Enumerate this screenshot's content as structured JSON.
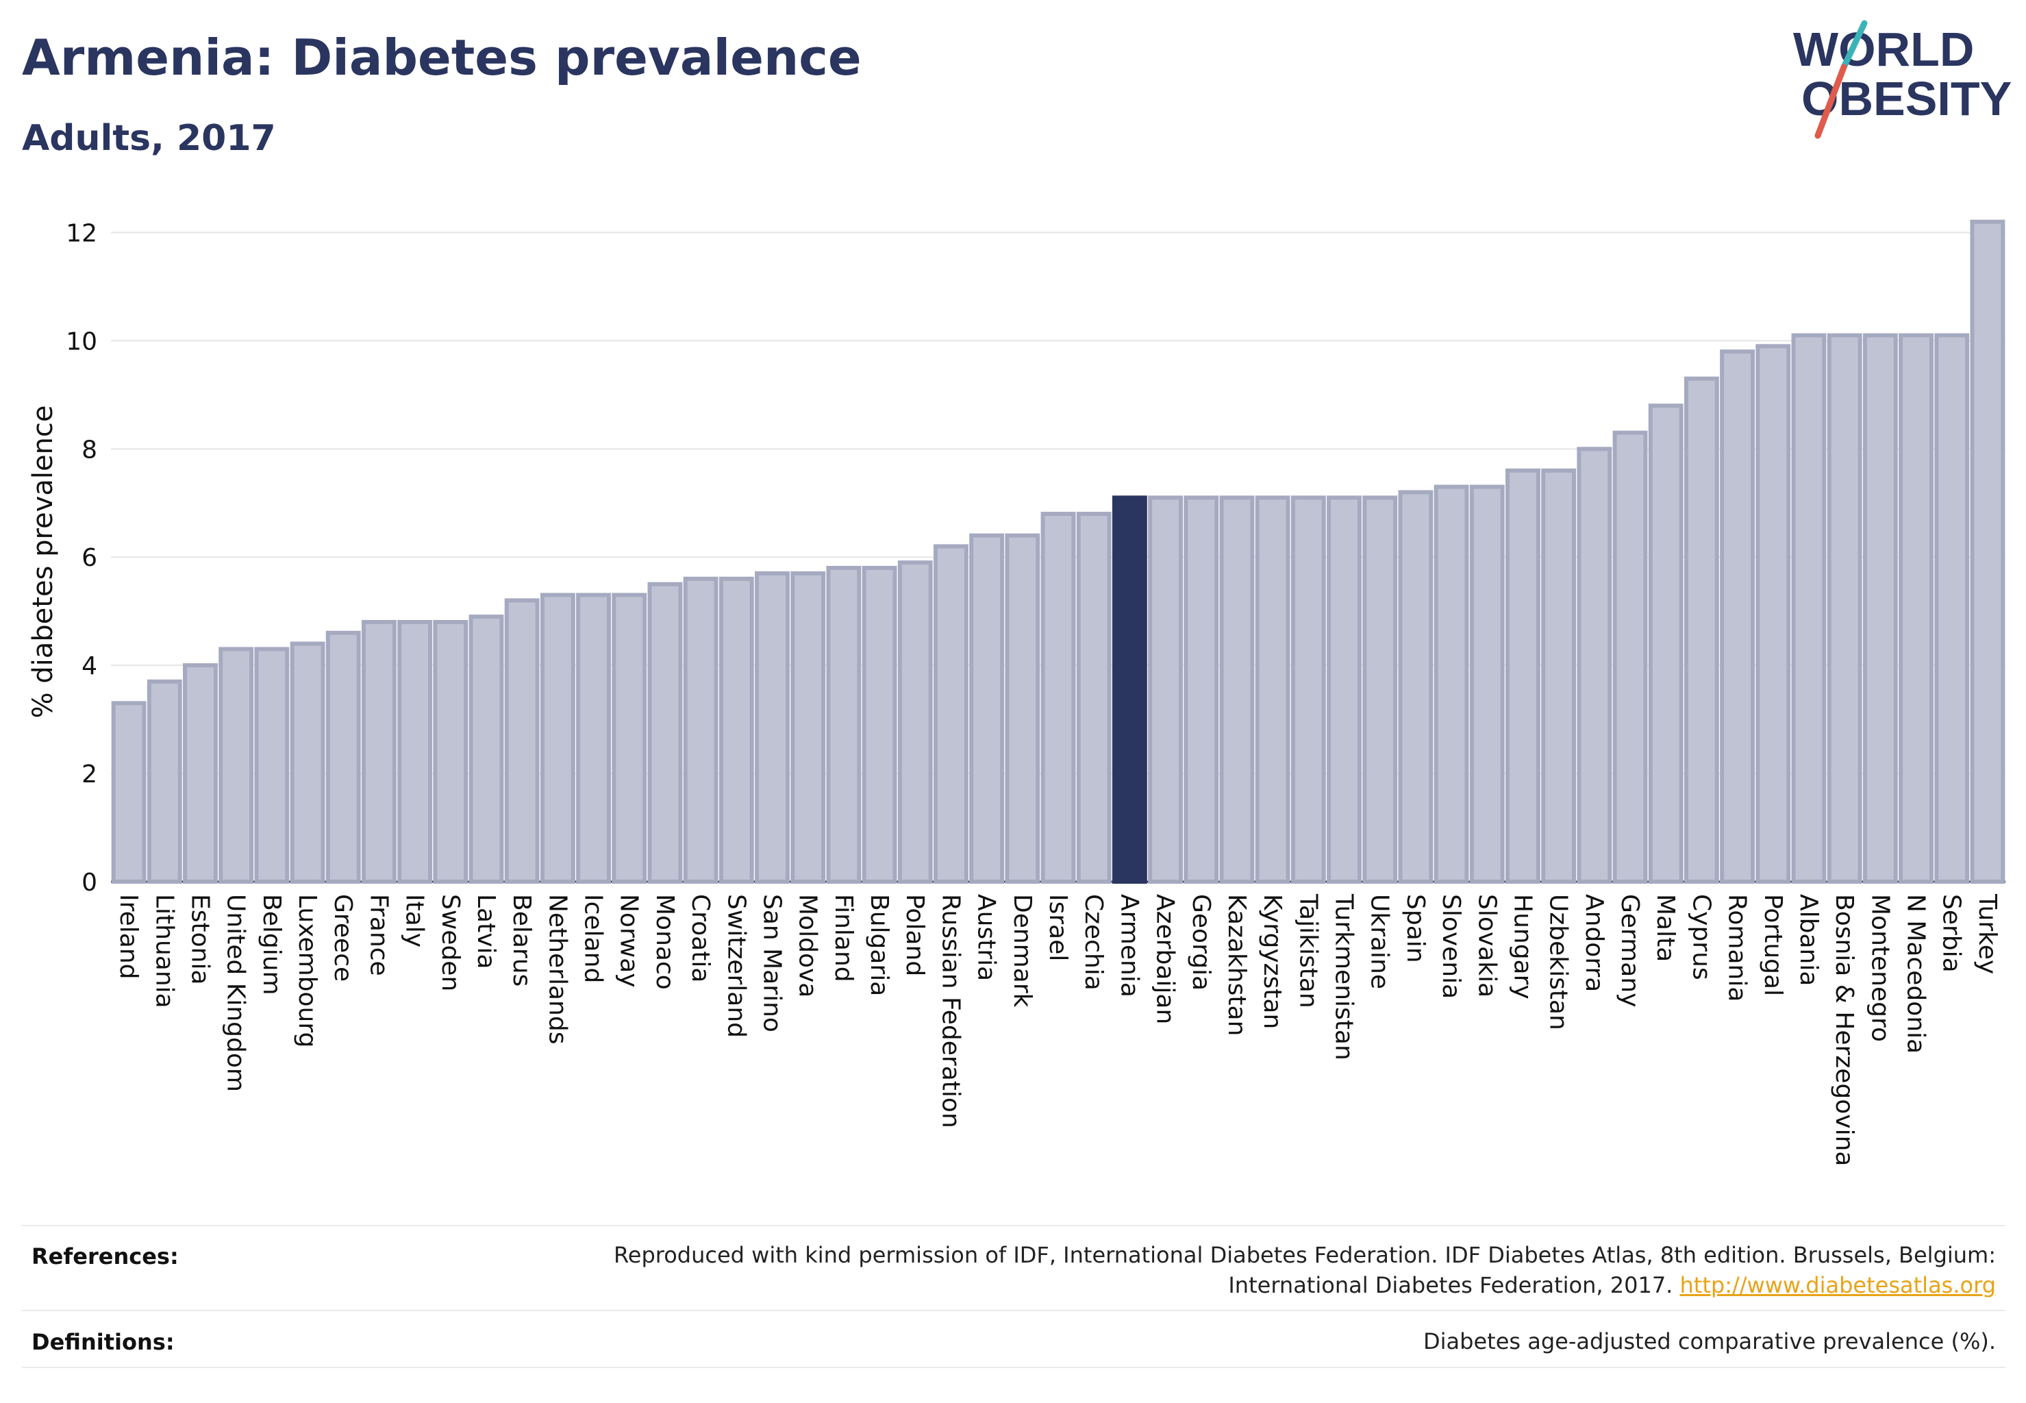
{
  "header": {
    "title": "Armenia: Diabetes prevalence",
    "subtitle": "Adults, 2017"
  },
  "logo": {
    "line1": "WORLD",
    "line2": "OBESITY",
    "colors": {
      "text": "#2a3560",
      "slash_teal": "#3bb3b9",
      "slash_red": "#e05b4b"
    }
  },
  "colors": {
    "bar_default": "#bfc3d3",
    "bar_default_stroke": "#a5aac0",
    "bar_highlight": "#2a3560",
    "axis_text": "#111111",
    "grid": "#e5e5e5"
  },
  "chart_data": {
    "type": "bar",
    "ylabel": "% diabetes prevalence",
    "xlabel": "",
    "ylim": [
      0,
      12.5
    ],
    "yticks": [
      0,
      2,
      4,
      6,
      8,
      10,
      12
    ],
    "grid": true,
    "highlight": "Armenia",
    "categories": [
      "Ireland",
      "Lithuania",
      "Estonia",
      "United Kingdom",
      "Belgium",
      "Luxembourg",
      "Greece",
      "France",
      "Italy",
      "Sweden",
      "Latvia",
      "Belarus",
      "Netherlands",
      "Iceland",
      "Norway",
      "Monaco",
      "Croatia",
      "Switzerland",
      "San Marino",
      "Moldova",
      "Finland",
      "Bulgaria",
      "Poland",
      "Russian Federation",
      "Austria",
      "Denmark",
      "Israel",
      "Czechia",
      "Armenia",
      "Azerbaijan",
      "Georgia",
      "Kazakhstan",
      "Kyrgyzstan",
      "Tajikistan",
      "Turkmenistan",
      "Ukraine",
      "Spain",
      "Slovenia",
      "Slovakia",
      "Hungary",
      "Uzbekistan",
      "Andorra",
      "Germany",
      "Malta",
      "Cyprus",
      "Romania",
      "Portugal",
      "Albania",
      "Bosnia & Herzegovina",
      "Montenegro",
      "N Macedonia",
      "Serbia",
      "Turkey"
    ],
    "values": [
      3.3,
      3.7,
      4.0,
      4.3,
      4.3,
      4.4,
      4.6,
      4.8,
      4.8,
      4.8,
      4.9,
      5.2,
      5.3,
      5.3,
      5.3,
      5.5,
      5.6,
      5.6,
      5.7,
      5.7,
      5.8,
      5.8,
      5.9,
      6.2,
      6.4,
      6.4,
      6.8,
      6.8,
      7.1,
      7.1,
      7.1,
      7.1,
      7.1,
      7.1,
      7.1,
      7.1,
      7.2,
      7.3,
      7.3,
      7.6,
      7.6,
      8.0,
      8.3,
      8.8,
      9.3,
      9.8,
      9.9,
      10.1,
      10.1,
      10.1,
      10.1,
      10.1,
      12.2
    ]
  },
  "footer": {
    "references_label": "References:",
    "references_text_line1": "Reproduced with kind permission of IDF, International Diabetes Federation. IDF Diabetes Atlas, 8th edition. Brussels, Belgium:",
    "references_text_line2": "International Diabetes Federation, 2017.",
    "references_link": "http://www.diabetesatlas.org",
    "definitions_label": "Definitions:",
    "definitions_text": "Diabetes age-adjusted comparative prevalence (%)."
  }
}
